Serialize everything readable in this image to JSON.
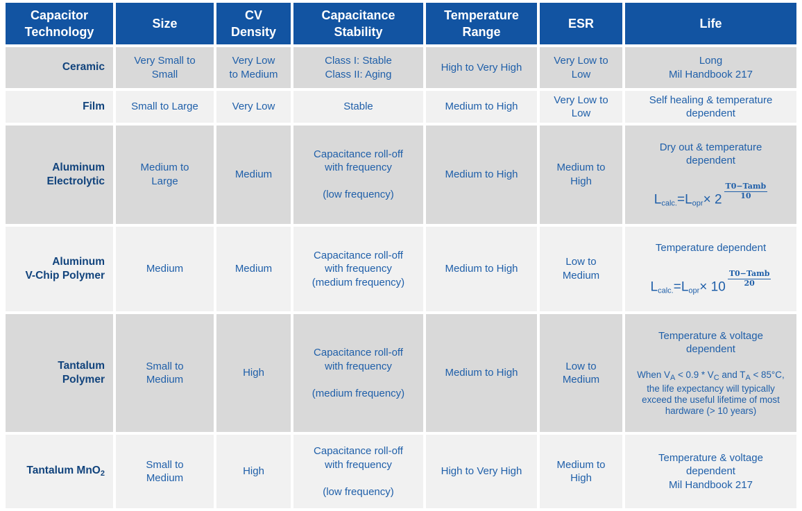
{
  "colors": {
    "header-bg": "#1254A2",
    "row-odd": "#D9D9D9",
    "row-even": "#F1F1F1",
    "body-text": "#1F5FA9",
    "tech-text": "#11437C"
  },
  "header": {
    "columns": [
      "Capacitor\nTechnology",
      "Size",
      "CV\nDensity",
      "Capacitance\nStability",
      "Temperature\nRange",
      "ESR",
      "Life"
    ]
  },
  "rows": [
    {
      "technology": "Ceramic",
      "size": "Very Small to\nSmall",
      "cv_density": "Very Low\nto Medium",
      "stability": "Class I: Stable\nClass II: Aging",
      "temperature": "High to Very High",
      "esr": "Very Low to\nLow",
      "life": "Long\nMil Handbook 217"
    },
    {
      "technology": "Film",
      "size": "Small to Large",
      "cv_density": "Very Low",
      "stability": "Stable",
      "temperature": "Medium to High",
      "esr": "Very Low to\nLow",
      "life": "Self healing & temperature\ndependent"
    },
    {
      "technology": "Aluminum\nElectrolytic",
      "size": "Medium to\nLarge",
      "cv_density": "Medium",
      "stability": "Capacitance roll-off\nwith frequency\n\n(low frequency)",
      "temperature": "Medium to High",
      "esr": "Medium to\nHigh",
      "life_heading": "Dry out & temperature\ndependent",
      "life_formula": [
        {
          "text": "L"
        },
        {
          "sub": "calc."
        },
        {
          "text": "=L"
        },
        {
          "sub": "opr"
        },
        {
          "text": "× 2"
        },
        {
          "frac": {
            "num": "T0−Tamb",
            "den": "10"
          }
        }
      ]
    },
    {
      "technology": "Aluminum\nV-Chip Polymer",
      "size": "Medium",
      "cv_density": "Medium",
      "stability": "Capacitance roll-off\nwith frequency\n(medium frequency)",
      "temperature": "Medium to High",
      "esr": "Low to\nMedium",
      "life_heading": "Temperature dependent",
      "life_formula": [
        {
          "text": "L"
        },
        {
          "sub": "calc."
        },
        {
          "text": "=L"
        },
        {
          "sub": "opr"
        },
        {
          "text": "× 10"
        },
        {
          "frac": {
            "num": "T0−Tamb",
            "den": "20"
          }
        }
      ]
    },
    {
      "technology": "Tantalum\nPolymer",
      "size": "Small to\nMedium",
      "cv_density": "High",
      "stability": "Capacitance roll-off\nwith frequency\n\n(medium frequency)",
      "temperature": "Medium to High",
      "esr": "Low to\nMedium",
      "life_heading": "Temperature & voltage\ndependent",
      "life_note": [
        {
          "text": "When V"
        },
        {
          "sub": "A"
        },
        {
          "text": " < 0.9 * V"
        },
        {
          "sub": "C"
        },
        {
          "text": " and T"
        },
        {
          "sub": "A"
        },
        {
          "text": " < 85°C, the life expectancy will typically exceed the useful lifetime of most hardware (> 10 years)"
        }
      ]
    },
    {
      "technology_rich": [
        {
          "text": "Tantalum MnO"
        },
        {
          "sub": "2"
        }
      ],
      "size": "Small to\nMedium",
      "cv_density": "High",
      "stability": "Capacitance roll-off\nwith frequency\n\n(low frequency)",
      "temperature": "High to Very High",
      "esr": "Medium to\nHigh",
      "life": "Temperature & voltage\ndependent\nMil Handbook 217"
    }
  ]
}
